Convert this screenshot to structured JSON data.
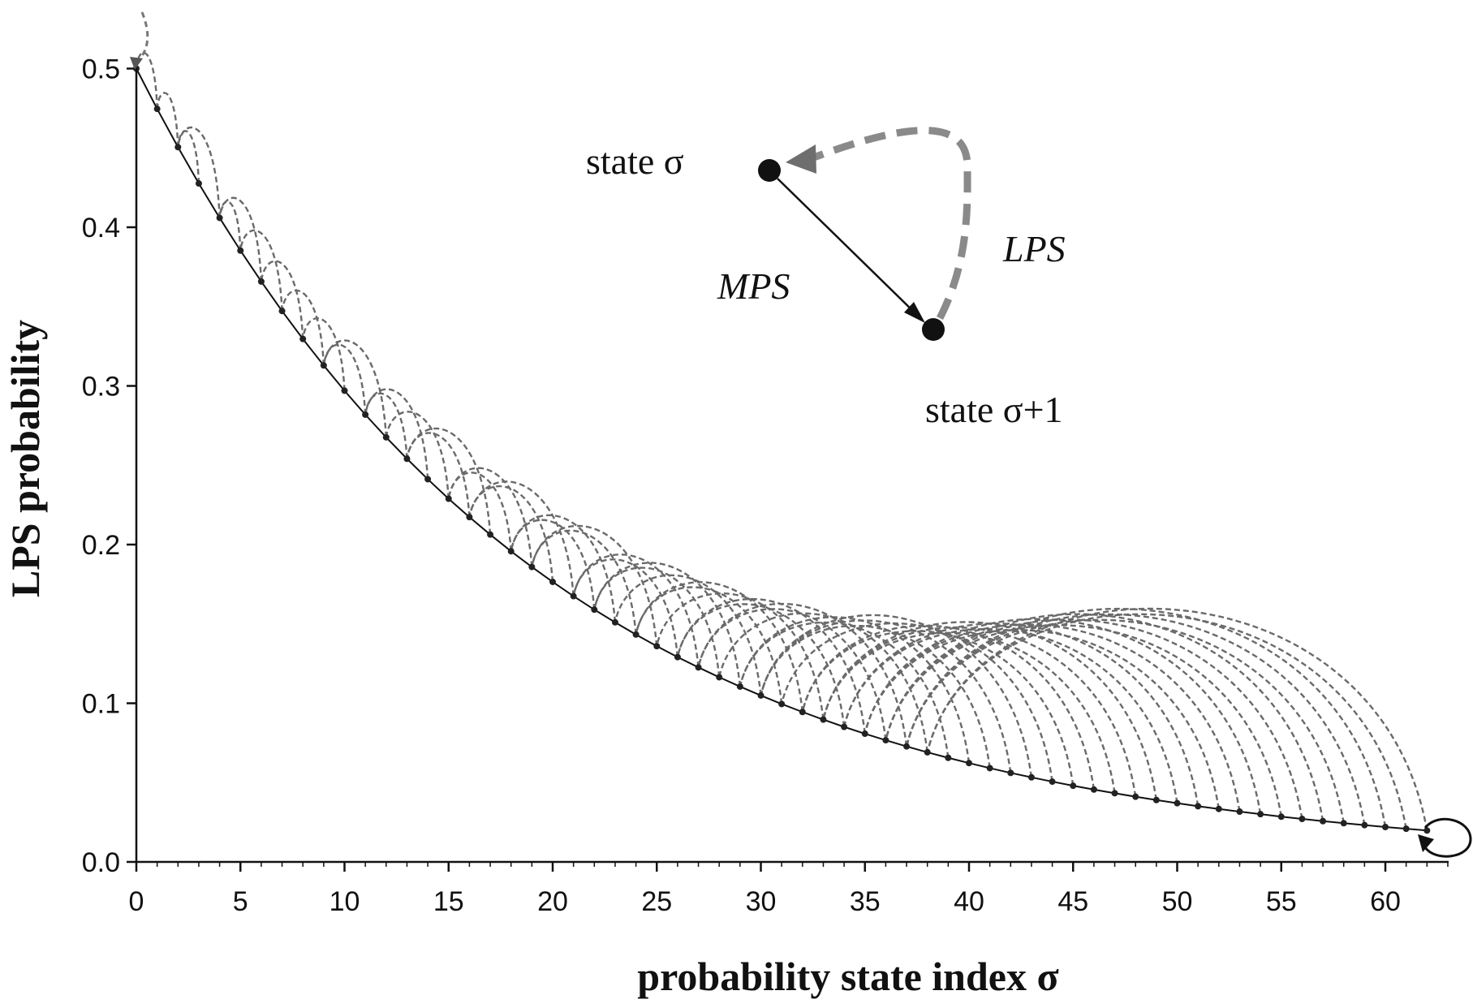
{
  "chart_data": {
    "type": "line",
    "xlabel": "probability state index σ",
    "ylabel": "LPS probability",
    "xlim": [
      0,
      63
    ],
    "ylim": [
      0,
      0.5
    ],
    "x_ticks": [
      "0",
      "5",
      "10",
      "15",
      "20",
      "25",
      "30",
      "35",
      "40",
      "45",
      "50",
      "55",
      "60"
    ],
    "y_ticks": [
      "0.0",
      "0.1",
      "0.2",
      "0.3",
      "0.4",
      "0.5"
    ],
    "grid": false,
    "series": [
      {
        "style": "solid-with-dots",
        "x": [
          0,
          1,
          2,
          3,
          4,
          5,
          6,
          7,
          8,
          9,
          10,
          11,
          12,
          13,
          14,
          15,
          16,
          17,
          18,
          19,
          20,
          21,
          22,
          23,
          24,
          25,
          26,
          27,
          28,
          29,
          30,
          31,
          32,
          33,
          34,
          35,
          36,
          37,
          38,
          39,
          40,
          41,
          42,
          43,
          44,
          45,
          46,
          47,
          48,
          49,
          50,
          51,
          52,
          53,
          54,
          55,
          56,
          57,
          58,
          59,
          60,
          61,
          62
        ],
        "values": [
          0.5,
          0.4746,
          0.4505,
          0.4276,
          0.4059,
          0.3853,
          0.3658,
          0.3472,
          0.3296,
          0.3129,
          0.297,
          0.2819,
          0.2676,
          0.2541,
          0.2412,
          0.2289,
          0.2173,
          0.2063,
          0.1958,
          0.1859,
          0.1765,
          0.1675,
          0.159,
          0.151,
          0.1433,
          0.136,
          0.1291,
          0.1226,
          0.1164,
          0.1105,
          0.1049,
          0.0995,
          0.0945,
          0.0897,
          0.0851,
          0.0808,
          0.0767,
          0.0728,
          0.0691,
          0.0656,
          0.0623,
          0.0591,
          0.0561,
          0.0533,
          0.0506,
          0.048,
          0.0456,
          0.0433,
          0.0411,
          0.039,
          0.037,
          0.0351,
          0.0334,
          0.0317,
          0.0301,
          0.0285,
          0.0271,
          0.0257,
          0.0244,
          0.0232,
          0.022,
          0.0209,
          0.0198
        ]
      }
    ],
    "lps_transitions_note_free": [
      [
        0,
        0
      ],
      [
        1,
        0
      ],
      [
        2,
        1
      ],
      [
        3,
        2
      ],
      [
        4,
        2
      ],
      [
        5,
        4
      ],
      [
        6,
        4
      ],
      [
        7,
        5
      ],
      [
        8,
        6
      ],
      [
        9,
        7
      ],
      [
        10,
        8
      ],
      [
        11,
        9
      ],
      [
        12,
        9
      ],
      [
        13,
        11
      ],
      [
        14,
        11
      ],
      [
        15,
        12
      ],
      [
        16,
        13
      ],
      [
        17,
        13
      ],
      [
        18,
        15
      ],
      [
        19,
        15
      ],
      [
        20,
        16
      ],
      [
        21,
        16
      ],
      [
        22,
        18
      ],
      [
        23,
        18
      ],
      [
        24,
        19
      ],
      [
        25,
        19
      ],
      [
        26,
        21
      ],
      [
        27,
        21
      ],
      [
        28,
        22
      ],
      [
        29,
        22
      ],
      [
        30,
        23
      ],
      [
        31,
        24
      ],
      [
        32,
        24
      ],
      [
        33,
        25
      ],
      [
        34,
        26
      ],
      [
        35,
        26
      ],
      [
        36,
        27
      ],
      [
        37,
        27
      ],
      [
        38,
        28
      ],
      [
        39,
        29
      ],
      [
        40,
        29
      ],
      [
        41,
        30
      ],
      [
        42,
        30
      ],
      [
        43,
        30
      ],
      [
        44,
        31
      ],
      [
        45,
        32
      ],
      [
        46,
        32
      ],
      [
        47,
        33
      ],
      [
        48,
        33
      ],
      [
        49,
        33
      ],
      [
        50,
        34
      ],
      [
        51,
        34
      ],
      [
        52,
        35
      ],
      [
        53,
        35
      ],
      [
        54,
        35
      ],
      [
        55,
        36
      ],
      [
        56,
        36
      ],
      [
        57,
        36
      ],
      [
        58,
        37
      ],
      [
        59,
        37
      ],
      [
        60,
        37
      ],
      [
        61,
        38
      ],
      [
        62,
        38
      ]
    ],
    "annotations": {
      "state_sigma": "state σ",
      "state_sigma_plus_1": "state σ+1",
      "mps": "MPS",
      "lps": "LPS"
    }
  }
}
